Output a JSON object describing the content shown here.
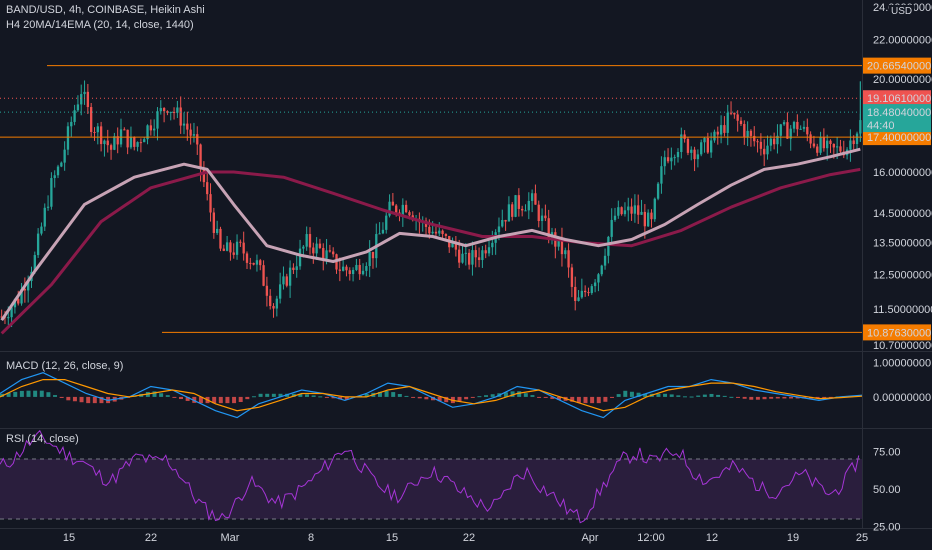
{
  "header": {
    "symbol_line": "BAND/USD, 4h, COINBASE, Heikin Ashi",
    "indicator_line": "H4 20MA/14EMA (20, 14, close, 1440)",
    "currency": "USD"
  },
  "macd_panel": {
    "label": "MACD (12, 26, close, 9)"
  },
  "rsi_panel": {
    "label": "RSI (14, close)"
  },
  "colors": {
    "background": "#131722",
    "up": "#26a69a",
    "down": "#ef5350",
    "ma_slow": "#8b1a4a",
    "ma_fast": "#c7a3b5",
    "level_line": "#f57c00",
    "rsi_line": "#a535d6",
    "rsi_band": "#2a1e3d",
    "macd_line": "#2196f3",
    "signal_line": "#ff9800"
  },
  "chart_data": [
    {
      "type": "candlestick",
      "title": "BAND/USD, 4h, COINBASE, Heikin Ashi",
      "x_ticks": [
        "15",
        "22",
        "Mar",
        "8",
        "15",
        "22",
        "Apr",
        "12:00",
        "12",
        "19",
        "25"
      ],
      "y_ticks": [
        "22.00000000",
        "20.00000000",
        "16.00000000",
        "14.50000000",
        "13.50000000",
        "12.50000000",
        "11.50000000"
      ],
      "y_partial_labels": [
        "24.00000000",
        "10.70000000"
      ],
      "ylim": [
        10.4,
        24.2
      ],
      "scale": "log",
      "price_levels": [
        {
          "label": "20.66540000",
          "value": 20.6654,
          "color": "#f57c00"
        },
        {
          "label": "17.40000000",
          "value": 17.4,
          "color": "#f57c00"
        },
        {
          "label": "10.87630000",
          "value": 10.8763,
          "color": "#f57c00"
        }
      ],
      "price_tags": [
        {
          "label": "19.10610000",
          "value": 19.1061,
          "color": "#ef5350"
        },
        {
          "label": "18.48040000",
          "sub": "44:40",
          "value": 18.4804,
          "color": "#26a69a"
        }
      ],
      "close_path": [
        [
          0,
          11.3
        ],
        [
          5,
          11.8
        ],
        [
          10,
          13.0
        ],
        [
          15,
          15.5
        ],
        [
          18,
          16.4
        ],
        [
          22,
          18.6
        ],
        [
          24,
          19.5
        ],
        [
          27,
          18.0
        ],
        [
          30,
          17.5
        ],
        [
          33,
          16.9
        ],
        [
          36,
          17.6
        ],
        [
          40,
          17.0
        ],
        [
          45,
          18.0
        ],
        [
          50,
          18.8
        ],
        [
          54,
          18.2
        ],
        [
          58,
          17.3
        ],
        [
          62,
          15.0
        ],
        [
          66,
          13.2
        ],
        [
          72,
          13.3
        ],
        [
          77,
          12.8
        ],
        [
          82,
          11.6
        ],
        [
          86,
          12.4
        ],
        [
          92,
          13.5
        ],
        [
          97,
          13.2
        ],
        [
          102,
          12.7
        ],
        [
          106,
          12.6
        ],
        [
          112,
          13.2
        ],
        [
          117,
          14.6
        ],
        [
          122,
          14.8
        ],
        [
          126,
          14.2
        ],
        [
          131,
          13.8
        ],
        [
          136,
          13.4
        ],
        [
          140,
          12.9
        ],
        [
          145,
          13.2
        ],
        [
          150,
          14.2
        ],
        [
          155,
          14.8
        ],
        [
          160,
          14.9
        ],
        [
          165,
          13.8
        ],
        [
          170,
          13.1
        ],
        [
          173,
          11.6
        ],
        [
          176,
          12.0
        ],
        [
          180,
          12.6
        ],
        [
          185,
          14.4
        ],
        [
          191,
          14.6
        ],
        [
          196,
          14.1
        ],
        [
          200,
          16.6
        ],
        [
          205,
          17.2
        ],
        [
          210,
          16.8
        ],
        [
          215,
          17.3
        ],
        [
          220,
          18.3
        ],
        [
          223,
          17.9
        ],
        [
          226,
          17.3
        ],
        [
          230,
          17.0
        ],
        [
          235,
          17.6
        ],
        [
          240,
          17.9
        ],
        [
          245,
          17.2
        ],
        [
          250,
          16.8
        ],
        [
          255,
          17.0
        ],
        [
          259,
          18.0
        ]
      ],
      "series": [
        {
          "name": "20MA",
          "points": [
            [
              0,
              10.85
            ],
            [
              15,
              12.2
            ],
            [
              30,
              14.2
            ],
            [
              45,
              15.4
            ],
            [
              62,
              16.0
            ],
            [
              70,
              16.0
            ],
            [
              85,
              15.8
            ],
            [
              100,
              15.2
            ],
            [
              115,
              14.6
            ],
            [
              130,
              14.1
            ],
            [
              145,
              13.7
            ],
            [
              160,
              13.7
            ],
            [
              175,
              13.5
            ],
            [
              190,
              13.4
            ],
            [
              205,
              13.9
            ],
            [
              220,
              14.7
            ],
            [
              235,
              15.4
            ],
            [
              250,
              15.9
            ],
            [
              259,
              16.1
            ]
          ]
        },
        {
          "name": "14EMA",
          "points": [
            [
              0,
              11.2
            ],
            [
              10,
              12.6
            ],
            [
              25,
              14.8
            ],
            [
              40,
              15.8
            ],
            [
              55,
              16.3
            ],
            [
              62,
              16.1
            ],
            [
              70,
              14.8
            ],
            [
              80,
              13.4
            ],
            [
              90,
              13.1
            ],
            [
              100,
              12.9
            ],
            [
              110,
              13.2
            ],
            [
              120,
              13.8
            ],
            [
              130,
              13.7
            ],
            [
              140,
              13.4
            ],
            [
              150,
              13.7
            ],
            [
              160,
              13.9
            ],
            [
              170,
              13.6
            ],
            [
              180,
              13.4
            ],
            [
              190,
              13.6
            ],
            [
              200,
              14.1
            ],
            [
              210,
              14.8
            ],
            [
              220,
              15.5
            ],
            [
              230,
              16.1
            ],
            [
              240,
              16.3
            ],
            [
              250,
              16.6
            ],
            [
              259,
              16.9
            ]
          ]
        }
      ]
    },
    {
      "type": "macd",
      "title": "MACD (12, 26, close, 9)",
      "y_ticks": [
        "1.00000000",
        "0.00000000"
      ],
      "ylim": [
        -0.9,
        1.3
      ],
      "series": [
        {
          "name": "macd",
          "values": [
            0.1,
            0.5,
            0.7,
            0.4,
            0.1,
            -0.1,
            0.0,
            0.3,
            0.2,
            -0.1,
            -0.4,
            -0.6,
            -0.2,
            0.0,
            0.2,
            0.1,
            -0.1,
            0.1,
            0.4,
            0.3,
            0.0,
            -0.3,
            -0.2,
            0.0,
            0.3,
            0.2,
            -0.1,
            -0.4,
            -0.6,
            -0.1,
            0.1,
            0.3,
            0.3,
            0.5,
            0.4,
            0.2,
            0.1,
            0.0,
            -0.1,
            0.0,
            0.05
          ]
        },
        {
          "name": "signal",
          "values": [
            0.0,
            0.3,
            0.5,
            0.5,
            0.3,
            0.1,
            0.0,
            0.1,
            0.2,
            0.1,
            -0.2,
            -0.4,
            -0.3,
            -0.1,
            0.1,
            0.1,
            0.0,
            0.0,
            0.2,
            0.3,
            0.1,
            -0.1,
            -0.2,
            -0.1,
            0.1,
            0.2,
            0.0,
            -0.2,
            -0.4,
            -0.3,
            0.0,
            0.2,
            0.3,
            0.4,
            0.4,
            0.3,
            0.15,
            0.05,
            -0.05,
            -0.02,
            0.02
          ]
        }
      ]
    },
    {
      "type": "rsi",
      "title": "RSI (14, close)",
      "y_ticks": [
        "75.00",
        "50.00",
        "25.00"
      ],
      "band": [
        30,
        70
      ],
      "ylim": [
        24,
        90
      ],
      "values": [
        65,
        70,
        80,
        85,
        78,
        72,
        68,
        60,
        55,
        64,
        72,
        68,
        70,
        60,
        45,
        35,
        30,
        40,
        55,
        48,
        40,
        45,
        52,
        60,
        70,
        78,
        66,
        55,
        48,
        45,
        55,
        62,
        58,
        50,
        44,
        38,
        40,
        55,
        62,
        52,
        45,
        36,
        30,
        44,
        58,
        70,
        74,
        68,
        72,
        76,
        62,
        55,
        60,
        65,
        58,
        50,
        48,
        55,
        60,
        52,
        46,
        55,
        70
      ]
    }
  ]
}
